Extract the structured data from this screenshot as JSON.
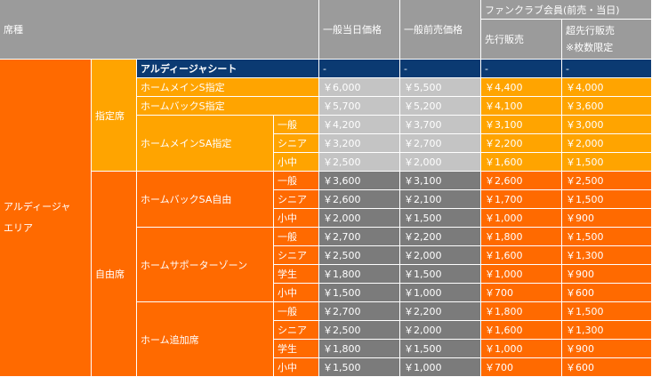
{
  "header": {
    "seat_type": "席種",
    "general_day": "一般当日価格",
    "general_advance": "一般前売価格",
    "fanclub": "ファンクラブ会員(前売・当日)",
    "fc_pre": "先行販売",
    "fc_super_line1": "超先行販売",
    "fc_super_line2": "※枚数限定"
  },
  "area": {
    "line1": "アルディージャ",
    "line2": "エリア"
  },
  "groups": {
    "reserved": "指定席",
    "free": "自由席"
  },
  "seats": {
    "ardija": {
      "name": "アルディージャシート",
      "prices": [
        "-",
        "-",
        "-",
        "-"
      ]
    },
    "home_main_s": {
      "name": "ホームメインS指定",
      "prices": [
        "￥6,000",
        "￥5,500",
        "￥4,400",
        "￥4,000"
      ]
    },
    "home_back_s": {
      "name": "ホームバックS指定",
      "prices": [
        "￥5,700",
        "￥5,200",
        "￥4,100",
        "￥3,600"
      ]
    },
    "home_main_sa": {
      "name": "ホームメインSA指定",
      "rows": [
        {
          "cat": "一般",
          "prices": [
            "￥4,200",
            "￥3,700",
            "￥3,100",
            "￥3,000"
          ]
        },
        {
          "cat": "シニア",
          "prices": [
            "￥3,200",
            "￥2,700",
            "￥2,200",
            "￥2,000"
          ]
        },
        {
          "cat": "小中",
          "prices": [
            "￥2,500",
            "￥2,000",
            "￥1,600",
            "￥1,500"
          ]
        }
      ]
    },
    "home_back_sa": {
      "name": "ホームバックSA自由",
      "rows": [
        {
          "cat": "一般",
          "prices": [
            "￥3,600",
            "￥3,100",
            "￥2,600",
            "￥2,500"
          ]
        },
        {
          "cat": "シニア",
          "prices": [
            "￥2,600",
            "￥2,100",
            "￥1,700",
            "￥1,500"
          ]
        },
        {
          "cat": "小中",
          "prices": [
            "￥2,000",
            "￥1,500",
            "￥1,000",
            "￥900"
          ]
        }
      ]
    },
    "home_supporter": {
      "name": "ホームサポーターゾーン",
      "rows": [
        {
          "cat": "一般",
          "prices": [
            "￥2,700",
            "￥2,200",
            "￥1,800",
            "￥1,500"
          ]
        },
        {
          "cat": "シニア",
          "prices": [
            "￥2,500",
            "￥2,000",
            "￥1,600",
            "￥1,300"
          ]
        },
        {
          "cat": "学生",
          "prices": [
            "￥1,800",
            "￥1,500",
            "￥1,000",
            "￥900"
          ]
        },
        {
          "cat": "小中",
          "prices": [
            "￥1,500",
            "￥1,000",
            "￥700",
            "￥600"
          ]
        }
      ]
    },
    "home_extra": {
      "name": "ホーム追加席",
      "rows": [
        {
          "cat": "一般",
          "prices": [
            "￥2,700",
            "￥2,200",
            "￥1,800",
            "￥1,500"
          ]
        },
        {
          "cat": "シニア",
          "prices": [
            "￥2,500",
            "￥2,000",
            "￥1,600",
            "￥1,300"
          ]
        },
        {
          "cat": "学生",
          "prices": [
            "￥1,800",
            "￥1,500",
            "￥1,000",
            "￥900"
          ]
        },
        {
          "cat": "小中",
          "prices": [
            "￥1,500",
            "￥1,000",
            "￥700",
            "￥600"
          ]
        }
      ]
    }
  },
  "colors": {
    "header_gray": "#9b9b9b",
    "area_orange": "#ff6a00",
    "reserved_amber": "#ffa400",
    "ardija_navy": "#0b3a72",
    "price_light_gray": "#c4c4c4",
    "price_dark_gray": "#7b7b7b"
  }
}
